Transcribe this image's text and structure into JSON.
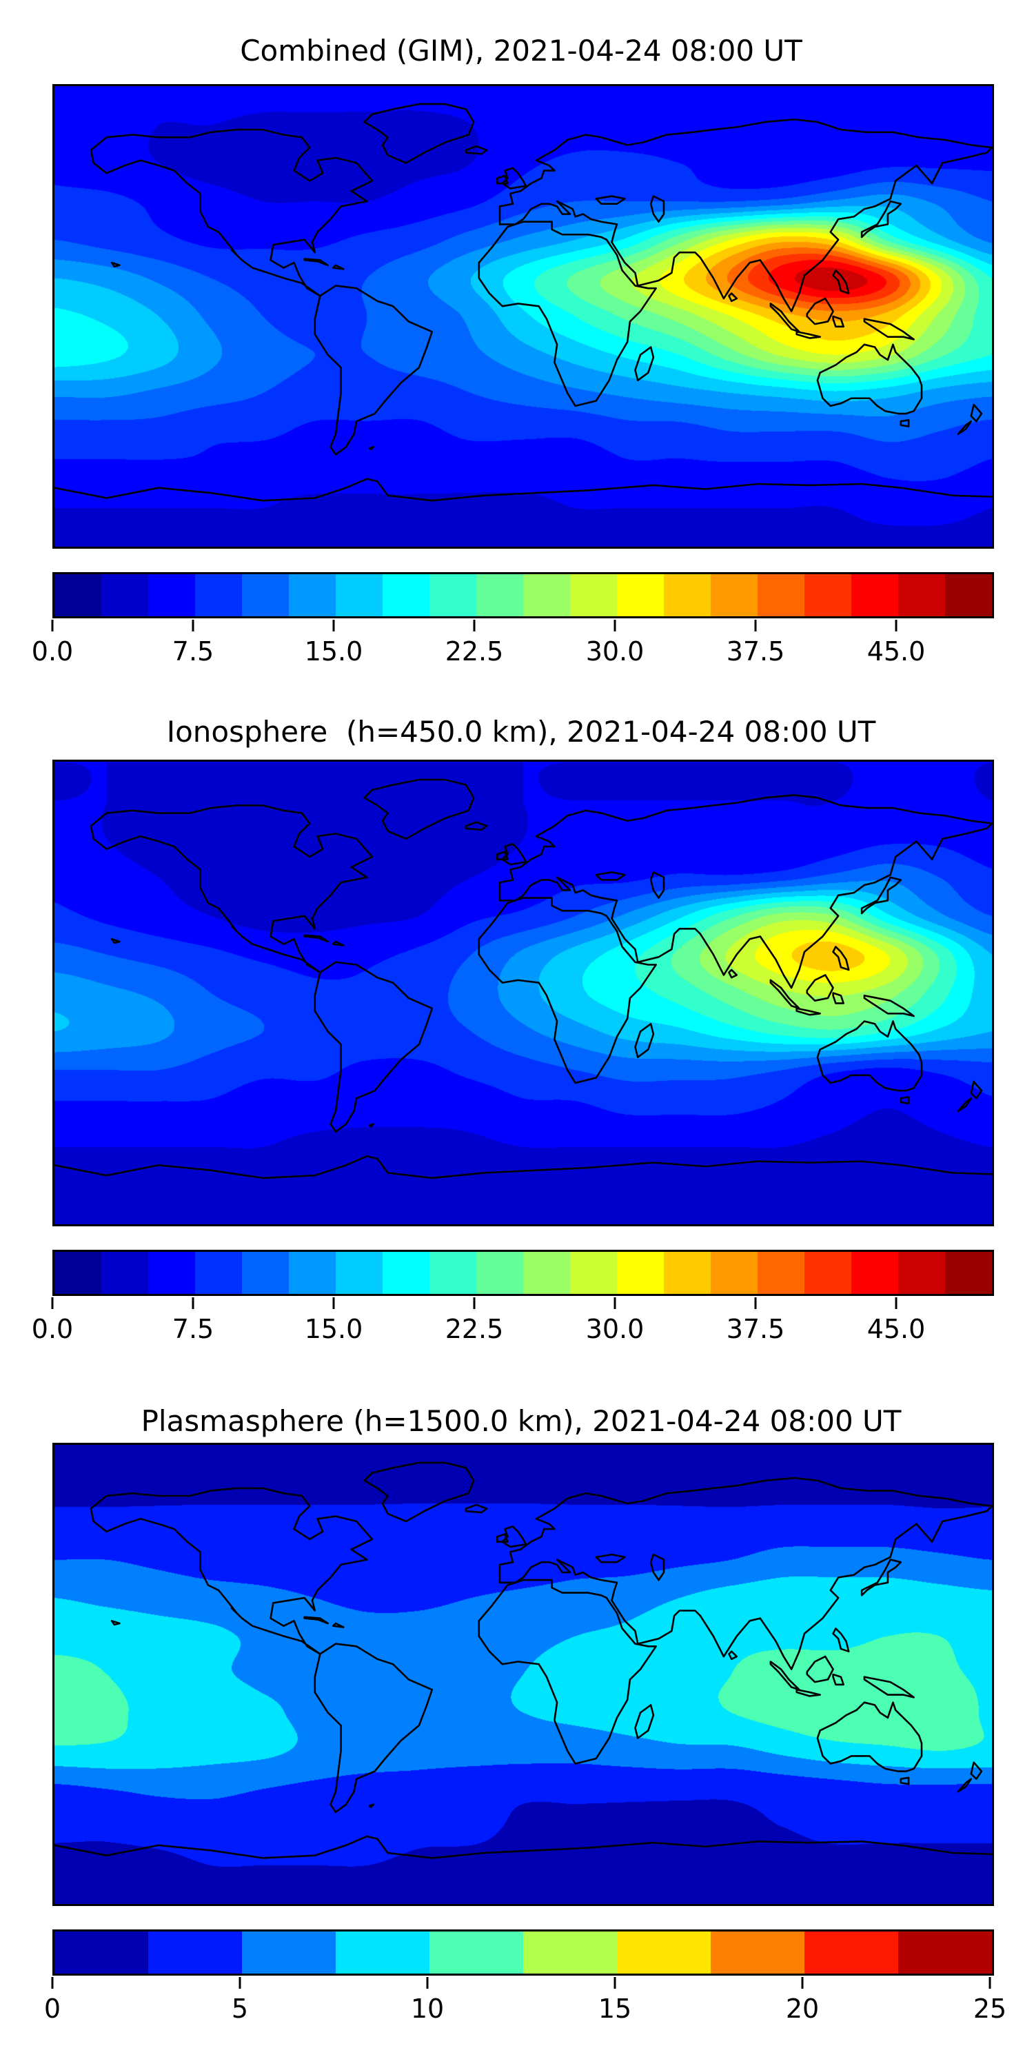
{
  "figure": {
    "background": "#ffffff",
    "coastline_color": "#000000"
  },
  "panels": [
    {
      "title": "Combined (GIM), 2021-04-24 08:00 UT",
      "colorbar": {
        "vmin": 0,
        "vmax": 50,
        "n_segments": 20,
        "colormap": "jet",
        "ticks": [
          {
            "value": 0,
            "label": "0.0"
          },
          {
            "value": 7.5,
            "label": "7.5"
          },
          {
            "value": 15,
            "label": "15.0"
          },
          {
            "value": 22.5,
            "label": "22.5"
          },
          {
            "value": 30,
            "label": "30.0"
          },
          {
            "value": 37.5,
            "label": "37.5"
          },
          {
            "value": 45,
            "label": "45.0"
          }
        ]
      }
    },
    {
      "title": "Ionosphere  (h=450.0 km), 2021-04-24 08:00 UT",
      "colorbar": {
        "vmin": 0,
        "vmax": 50,
        "n_segments": 20,
        "colormap": "jet",
        "ticks": [
          {
            "value": 0,
            "label": "0.0"
          },
          {
            "value": 7.5,
            "label": "7.5"
          },
          {
            "value": 15,
            "label": "15.0"
          },
          {
            "value": 22.5,
            "label": "22.5"
          },
          {
            "value": 30,
            "label": "30.0"
          },
          {
            "value": 37.5,
            "label": "37.5"
          },
          {
            "value": 45,
            "label": "45.0"
          }
        ]
      }
    },
    {
      "title": "Plasmasphere (h=1500.0 km), 2021-04-24 08:00 UT",
      "colorbar": {
        "vmin": 0,
        "vmax": 25,
        "n_segments": 10,
        "colormap": "jet",
        "ticks": [
          {
            "value": 0,
            "label": "0"
          },
          {
            "value": 5,
            "label": "5"
          },
          {
            "value": 10,
            "label": "10"
          },
          {
            "value": 15,
            "label": "15"
          },
          {
            "value": 20,
            "label": "20"
          },
          {
            "value": 25,
            "label": "25"
          }
        ]
      }
    }
  ],
  "chart_data": [
    {
      "type": "heatmap",
      "title": "Combined (GIM), 2021-04-24 08:00 UT",
      "projection": "equirectangular",
      "colormap": "jet",
      "value_range": [
        0,
        50
      ],
      "contour_interval": 2.5,
      "lon": [
        -180,
        -160,
        -140,
        -120,
        -100,
        -80,
        -60,
        -40,
        -20,
        0,
        20,
        40,
        60,
        80,
        100,
        120,
        140,
        160,
        180
      ],
      "lat": [
        90,
        75,
        60,
        45,
        30,
        15,
        0,
        -15,
        -30,
        -45,
        -60,
        -75,
        -90
      ],
      "values": [
        [
          6,
          6,
          6,
          6,
          6,
          6,
          6,
          6,
          6,
          6,
          6,
          6,
          6,
          6,
          6,
          6,
          6,
          6,
          6
        ],
        [
          6,
          6,
          5,
          5,
          4.5,
          4.5,
          4.5,
          4.5,
          5,
          6,
          6.5,
          6.5,
          6.5,
          6,
          6,
          6,
          6,
          6,
          6
        ],
        [
          7,
          6,
          5,
          4,
          3.5,
          3.5,
          4,
          4.5,
          5,
          7,
          8,
          8,
          7.5,
          6.5,
          6,
          6,
          7,
          7,
          7
        ],
        [
          8,
          8,
          7,
          6,
          5,
          5,
          5,
          6,
          7,
          9,
          10,
          10,
          10,
          10,
          11,
          13,
          14,
          12,
          10
        ],
        [
          10,
          9,
          8,
          7,
          7,
          7,
          8,
          9,
          11,
          13,
          15,
          18,
          24,
          30,
          34,
          32,
          22,
          16,
          12
        ],
        [
          15,
          14,
          12,
          10,
          9,
          9,
          10,
          12,
          15,
          19,
          23,
          27,
          32,
          38,
          44,
          47,
          42,
          30,
          20
        ],
        [
          18,
          17,
          15,
          12,
          10,
          9,
          10,
          11,
          13,
          17,
          20,
          23,
          26,
          30,
          34,
          36,
          34,
          27,
          21
        ],
        [
          19,
          18,
          16,
          13,
          11,
          10,
          10,
          11,
          12,
          14,
          16,
          18,
          20,
          24,
          28,
          30,
          28,
          23,
          20
        ],
        [
          13,
          13,
          12,
          11,
          10,
          9,
          9,
          9,
          10,
          11,
          12,
          13,
          14,
          15,
          16,
          17,
          16,
          14,
          13
        ],
        [
          9,
          9,
          9,
          8,
          8,
          7,
          7,
          7,
          8,
          8,
          8,
          9,
          9,
          10,
          10,
          10,
          11,
          10,
          9
        ],
        [
          7,
          7,
          7,
          7,
          6,
          6,
          6,
          6,
          6,
          6,
          6,
          7,
          7,
          7,
          7,
          7,
          8,
          8,
          7
        ],
        [
          5,
          5,
          5,
          5,
          5,
          4.5,
          4.5,
          4.5,
          4.5,
          4.5,
          5,
          5,
          5,
          5,
          5,
          5,
          6,
          6,
          5
        ],
        [
          4,
          4,
          4,
          4,
          4,
          4,
          4,
          4,
          4,
          4,
          4,
          4,
          4,
          4,
          4,
          4,
          4,
          4,
          4
        ]
      ]
    },
    {
      "type": "heatmap",
      "title": "Ionosphere  (h=450.0 km), 2021-04-24 08:00 UT",
      "projection": "equirectangular",
      "colormap": "jet",
      "value_range": [
        0,
        50
      ],
      "contour_interval": 2.5,
      "lon": [
        -180,
        -160,
        -140,
        -120,
        -100,
        -80,
        -60,
        -40,
        -20,
        0,
        20,
        40,
        60,
        80,
        100,
        120,
        140,
        160,
        180
      ],
      "lat": [
        90,
        75,
        60,
        45,
        30,
        15,
        0,
        -15,
        -30,
        -45,
        -60,
        -75,
        -90
      ],
      "values": [
        [
          5,
          5,
          5,
          5,
          5,
          5,
          5,
          5,
          5,
          5,
          5,
          5,
          5,
          5,
          5,
          5,
          5,
          5,
          5
        ],
        [
          5,
          5,
          4.5,
          4,
          4,
          4,
          4,
          4,
          4.5,
          5,
          5,
          5,
          5,
          5,
          5,
          5,
          5.5,
          5.5,
          5
        ],
        [
          6,
          5,
          4,
          3.5,
          3,
          3,
          3,
          3.5,
          4,
          5,
          6,
          6,
          6,
          5.5,
          5.5,
          6,
          7,
          7,
          6
        ],
        [
          7,
          6,
          5,
          4,
          3.5,
          3,
          3.5,
          4,
          5,
          6,
          7,
          7,
          8,
          8,
          9,
          11,
          12,
          10,
          8
        ],
        [
          8,
          7,
          6,
          5,
          4,
          4,
          4.5,
          5,
          7,
          8,
          10,
          13,
          17,
          22,
          26,
          25,
          18,
          13,
          10
        ],
        [
          11,
          10,
          9,
          8,
          7,
          6.5,
          7,
          8,
          10,
          13,
          16,
          19,
          23,
          28,
          32,
          34,
          30,
          22,
          15
        ],
        [
          14,
          13,
          12,
          10,
          9,
          8,
          8,
          9,
          11,
          14,
          17,
          19,
          21,
          24,
          27,
          28,
          26,
          21,
          16
        ],
        [
          15,
          14,
          13,
          11,
          10,
          9,
          9,
          9,
          10,
          12,
          14,
          16,
          17,
          19,
          21,
          22,
          20,
          17,
          15
        ],
        [
          10,
          10,
          10,
          9,
          8,
          8,
          7,
          7,
          8,
          9,
          10,
          11,
          11,
          11,
          10,
          8,
          7,
          8,
          9
        ],
        [
          7,
          7,
          7,
          7,
          6,
          6,
          6,
          6,
          6,
          7,
          7,
          8,
          8,
          8,
          7,
          6,
          5,
          6,
          7
        ],
        [
          5,
          5,
          5,
          5,
          5,
          4.5,
          4,
          4,
          4.5,
          5,
          5,
          5,
          5,
          5,
          5,
          4.5,
          4,
          4.5,
          5
        ],
        [
          4,
          4,
          4,
          4,
          4,
          4,
          3.5,
          3.5,
          3.5,
          4,
          4,
          4,
          4,
          4,
          4,
          4,
          4,
          4,
          4
        ],
        [
          4,
          4,
          4,
          4,
          4,
          4,
          4,
          4,
          4,
          4,
          4,
          4,
          4,
          4,
          4,
          4,
          4,
          4,
          4
        ]
      ]
    },
    {
      "type": "heatmap",
      "title": "Plasmasphere (h=1500.0 km), 2021-04-24 08:00 UT",
      "projection": "equirectangular",
      "colormap": "jet",
      "value_range": [
        0,
        25
      ],
      "contour_interval": 2.5,
      "lon": [
        -180,
        -160,
        -140,
        -120,
        -100,
        -80,
        -60,
        -40,
        -20,
        0,
        20,
        40,
        60,
        80,
        100,
        120,
        140,
        160,
        180
      ],
      "lat": [
        90,
        75,
        60,
        45,
        30,
        15,
        0,
        -15,
        -30,
        -45,
        -60,
        -75,
        -90
      ],
      "values": [
        [
          2,
          2,
          2,
          2,
          2,
          2,
          2,
          2,
          2,
          2,
          2,
          2,
          2,
          2,
          2,
          2,
          2,
          2,
          2
        ],
        [
          2,
          2,
          2,
          2,
          2,
          2,
          2,
          2,
          2,
          2,
          2,
          2,
          2,
          2,
          2,
          2,
          2,
          2,
          2
        ],
        [
          3,
          3,
          3,
          3,
          3,
          3,
          3,
          3,
          3,
          3,
          3,
          3,
          3,
          3,
          3.2,
          3.2,
          3.2,
          3,
          3
        ],
        [
          5,
          5,
          4.5,
          4,
          4,
          4,
          4,
          3.5,
          3.5,
          3.5,
          4,
          4,
          4.5,
          5,
          6,
          6,
          6,
          5.5,
          5
        ],
        [
          7.5,
          7,
          6.5,
          6,
          5.5,
          5,
          4.5,
          4.5,
          5,
          5.5,
          6,
          6.5,
          7.5,
          8.5,
          9,
          9,
          9,
          8.5,
          8
        ],
        [
          9,
          9,
          8.5,
          8,
          7,
          6.5,
          6,
          6,
          6.5,
          7,
          7.5,
          8,
          9,
          9.5,
          9.5,
          9.5,
          10,
          10,
          9
        ],
        [
          11,
          10,
          9,
          8,
          7,
          7,
          7,
          6.5,
          7,
          7.5,
          8,
          9,
          9.5,
          10,
          11,
          11,
          11,
          10.5,
          9.5
        ],
        [
          12,
          10.5,
          9.5,
          9.5,
          8,
          7,
          7,
          7,
          7,
          7.5,
          8,
          8.5,
          9,
          10,
          11,
          12,
          12,
          12,
          9.5
        ],
        [
          9.5,
          9.5,
          9,
          8.5,
          8,
          7,
          6.5,
          6,
          6,
          6,
          6,
          6.5,
          7,
          7,
          8,
          9,
          9.5,
          10,
          9.5
        ],
        [
          4.5,
          5,
          5.5,
          5.5,
          5,
          4.5,
          4,
          4,
          3.5,
          3,
          3,
          3,
          3,
          3,
          3.5,
          4,
          4.5,
          4.5,
          4.5
        ],
        [
          3,
          3,
          3.5,
          4,
          4,
          4,
          3.5,
          3,
          3,
          2.2,
          2.2,
          2.2,
          2.2,
          2.2,
          2.5,
          3,
          3,
          3,
          3
        ],
        [
          2,
          2,
          2,
          2.5,
          2.5,
          2.5,
          2.5,
          2.2,
          2,
          2,
          2,
          2,
          2,
          2,
          2,
          2,
          2,
          2,
          2
        ],
        [
          2,
          2,
          2,
          2,
          2,
          2,
          2,
          2,
          2,
          2,
          2,
          2,
          2,
          2,
          2,
          2,
          2,
          2,
          2
        ]
      ]
    }
  ]
}
